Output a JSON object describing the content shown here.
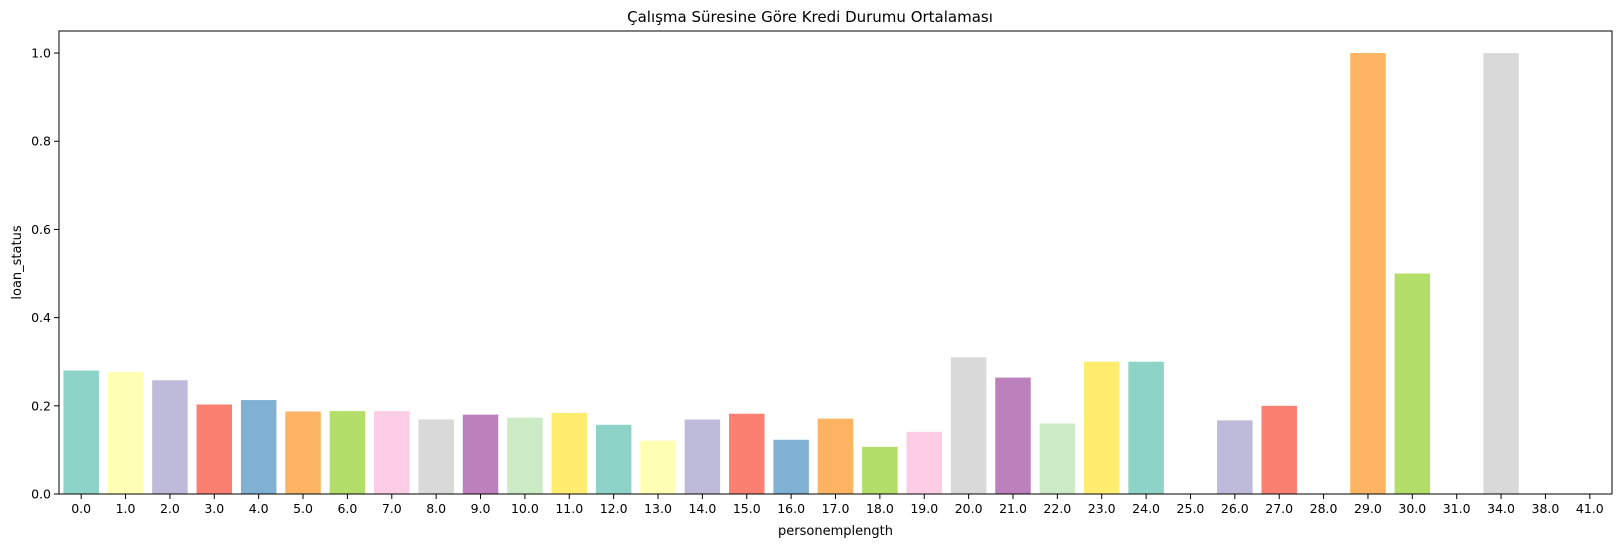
{
  "chart_data": {
    "type": "bar",
    "title": "Çalışma Süresine Göre Kredi Durumu Ortalaması",
    "xlabel": "personemplength",
    "ylabel": "loan_status",
    "ylim": [
      0,
      1.05
    ],
    "yticks": [
      "0.0",
      "0.2",
      "0.4",
      "0.6",
      "0.8",
      "1.0"
    ],
    "grid": false,
    "categories": [
      "0.0",
      "1.0",
      "2.0",
      "3.0",
      "4.0",
      "5.0",
      "6.0",
      "7.0",
      "8.0",
      "9.0",
      "10.0",
      "11.0",
      "12.0",
      "13.0",
      "14.0",
      "15.0",
      "16.0",
      "17.0",
      "18.0",
      "19.0",
      "20.0",
      "21.0",
      "22.0",
      "23.0",
      "24.0",
      "25.0",
      "26.0",
      "27.0",
      "28.0",
      "29.0",
      "30.0",
      "31.0",
      "34.0",
      "38.0",
      "41.0"
    ],
    "values": [
      0.28,
      0.277,
      0.258,
      0.203,
      0.213,
      0.187,
      0.188,
      0.188,
      0.169,
      0.18,
      0.173,
      0.184,
      0.157,
      0.121,
      0.169,
      0.182,
      0.123,
      0.171,
      0.107,
      0.141,
      0.31,
      0.264,
      0.16,
      0.3,
      0.3,
      0.0,
      0.167,
      0.2,
      0.0,
      1.0,
      0.5,
      0.0,
      1.0,
      0.0,
      0.0
    ],
    "colors": [
      "#8dd3c7",
      "#ffffb3",
      "#bebada",
      "#fb8072",
      "#80b1d3",
      "#fdb462",
      "#b3de69",
      "#fccde5",
      "#d9d9d9",
      "#bc80bd",
      "#ccebc5",
      "#ffed6f"
    ]
  }
}
